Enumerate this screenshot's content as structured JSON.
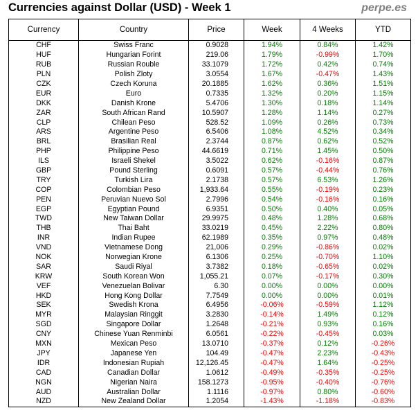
{
  "title": "Currencies against Dollar (USD) - Week 1",
  "brand": "perpe.es",
  "colors": {
    "positive": "#008000",
    "negative": "#ff0000"
  },
  "columns": {
    "currency": "Currency",
    "country": "Country",
    "price": "Price",
    "week": "Week",
    "four_weeks": "4 Weeks",
    "ytd": "YTD"
  },
  "rows": [
    {
      "code": "CHF",
      "country": "Swiss Franc",
      "price": "0.9028",
      "week": "1.94%",
      "four_weeks": "0.84%",
      "ytd": "1.42%"
    },
    {
      "code": "HUF",
      "country": "Hungarian Forint",
      "price": "219.06",
      "week": "1.79%",
      "four_weeks": "-0.99%",
      "ytd": "1.70%"
    },
    {
      "code": "RUB",
      "country": "Russian Rouble",
      "price": "33.1079",
      "week": "1.72%",
      "four_weeks": "0.42%",
      "ytd": "0.74%"
    },
    {
      "code": "PLN",
      "country": "Polish Zloty",
      "price": "3.0554",
      "week": "1.67%",
      "four_weeks": "-0.47%",
      "ytd": "1.43%"
    },
    {
      "code": "CZK",
      "country": "Czech Koruna",
      "price": "20.1885",
      "week": "1.62%",
      "four_weeks": "0.36%",
      "ytd": "1.51%"
    },
    {
      "code": "EUR",
      "country": "Euro",
      "price": "0.7335",
      "week": "1.32%",
      "four_weeks": "0.20%",
      "ytd": "1.15%"
    },
    {
      "code": "DKK",
      "country": "Danish Krone",
      "price": "5.4706",
      "week": "1.30%",
      "four_weeks": "0.18%",
      "ytd": "1.14%"
    },
    {
      "code": "ZAR",
      "country": "South African Rand",
      "price": "10.5907",
      "week": "1.28%",
      "four_weeks": "1.14%",
      "ytd": "0.27%"
    },
    {
      "code": "CLP",
      "country": "Chilean Peso",
      "price": "528.52",
      "week": "1.09%",
      "four_weeks": "0.26%",
      "ytd": "0.73%"
    },
    {
      "code": "ARS",
      "country": "Argentine Peso",
      "price": "6.5406",
      "week": "1.08%",
      "four_weeks": "4.52%",
      "ytd": "0.34%"
    },
    {
      "code": "BRL",
      "country": "Brasilian Real",
      "price": "2.3744",
      "week": "0.87%",
      "four_weeks": "0.62%",
      "ytd": "0.52%"
    },
    {
      "code": "PHP",
      "country": "Philippine Peso",
      "price": "44.6619",
      "week": "0.71%",
      "four_weeks": "1.45%",
      "ytd": "0.50%"
    },
    {
      "code": "ILS",
      "country": "Israeli Shekel",
      "price": "3.5022",
      "week": "0.62%",
      "four_weeks": "-0.16%",
      "ytd": "0.87%"
    },
    {
      "code": "GBP",
      "country": "Pound Sterling",
      "price": "0.6091",
      "week": "0.57%",
      "four_weeks": "-0.44%",
      "ytd": "0.76%"
    },
    {
      "code": "TRY",
      "country": "Turkish Lira",
      "price": "2.1738",
      "week": "0.57%",
      "four_weeks": "6.53%",
      "ytd": "1.26%"
    },
    {
      "code": "COP",
      "country": "Colombian Peso",
      "price": "1,933.64",
      "week": "0.55%",
      "four_weeks": "-0.19%",
      "ytd": "0.23%"
    },
    {
      "code": "PEN",
      "country": "Peruvian Nuevo Sol",
      "price": "2.7996",
      "week": "0.54%",
      "four_weeks": "-0.16%",
      "ytd": "0.16%"
    },
    {
      "code": "EGP",
      "country": "Egyptian Pound",
      "price": "6.9351",
      "week": "0.50%",
      "four_weeks": "0.40%",
      "ytd": "0.05%"
    },
    {
      "code": "TWD",
      "country": "New Taiwan Dollar",
      "price": "29.9975",
      "week": "0.48%",
      "four_weeks": "1.28%",
      "ytd": "0.68%"
    },
    {
      "code": "THB",
      "country": "Thai Baht",
      "price": "33.0219",
      "week": "0.45%",
      "four_weeks": "2.22%",
      "ytd": "0.80%"
    },
    {
      "code": "INR",
      "country": "Indian Rupee",
      "price": "62.1989",
      "week": "0.35%",
      "four_weeks": "0.97%",
      "ytd": "0.48%"
    },
    {
      "code": "VND",
      "country": "Vietnamese Dong",
      "price": "21,006",
      "week": "0.29%",
      "four_weeks": "-0.86%",
      "ytd": "0.02%"
    },
    {
      "code": "NOK",
      "country": "Norwegian Krone",
      "price": "6.1306",
      "week": "0.25%",
      "four_weeks": "-0.70%",
      "ytd": "1.10%"
    },
    {
      "code": "SAR",
      "country": "Saudi Riyal",
      "price": "3.7382",
      "week": "0.18%",
      "four_weeks": "-0.65%",
      "ytd": "0.02%"
    },
    {
      "code": "KRW",
      "country": "South Korean Won",
      "price": "1,055.21",
      "week": "0.07%",
      "four_weeks": "-0.17%",
      "ytd": "0.30%"
    },
    {
      "code": "VEF",
      "country": "Venezuelan Bolivar",
      "price": "6.30",
      "week": "0.00%",
      "four_weeks": "0.00%",
      "ytd": "0.00%"
    },
    {
      "code": "HKD",
      "country": "Hong Kong Dollar",
      "price": "7.7549",
      "week": "0.00%",
      "four_weeks": "0.00%",
      "ytd": "0.01%"
    },
    {
      "code": "SEK",
      "country": "Swedish Krona",
      "price": "6.4956",
      "week": "-0.06%",
      "four_weeks": "-0.59%",
      "ytd": "1.12%"
    },
    {
      "code": "MYR",
      "country": "Malaysian Ringgit",
      "price": "3.2830",
      "week": "-0.14%",
      "four_weeks": "1.49%",
      "ytd": "0.12%"
    },
    {
      "code": "SGD",
      "country": "Singapore Dollar",
      "price": "1.2648",
      "week": "-0.21%",
      "four_weeks": "0.93%",
      "ytd": "0.16%"
    },
    {
      "code": "CNY",
      "country": "Chinese Yuan Renminbi",
      "price": "6.0561",
      "week": "-0.22%",
      "four_weeks": "-0.45%",
      "ytd": "0.03%"
    },
    {
      "code": "MXN",
      "country": "Mexican Peso",
      "price": "13.0710",
      "week": "-0.37%",
      "four_weeks": "0.12%",
      "ytd": "-0.26%"
    },
    {
      "code": "JPY",
      "country": "Japanese Yen",
      "price": "104.49",
      "week": "-0.47%",
      "four_weeks": "2.23%",
      "ytd": "-0.43%"
    },
    {
      "code": "IDR",
      "country": "Indonesian Rupiah",
      "price": "12,126.45",
      "week": "-0.47%",
      "four_weeks": "1.64%",
      "ytd": "-0.25%"
    },
    {
      "code": "CAD",
      "country": "Canadian Dollar",
      "price": "1.0612",
      "week": "-0.49%",
      "four_weeks": "-0.35%",
      "ytd": "-0.25%"
    },
    {
      "code": "NGN",
      "country": "Nigerian Naira",
      "price": "158.1273",
      "week": "-0.95%",
      "four_weeks": "-0.40%",
      "ytd": "-0.76%"
    },
    {
      "code": "AUD",
      "country": "Australian Dollar",
      "price": "1.1116",
      "week": "-0.97%",
      "four_weeks": "0.80%",
      "ytd": "-0.60%"
    },
    {
      "code": "NZD",
      "country": "New Zealand Dollar",
      "price": "1.2054",
      "week": "-1.43%",
      "four_weeks": "-1.18%",
      "ytd": "-0.83%"
    }
  ]
}
